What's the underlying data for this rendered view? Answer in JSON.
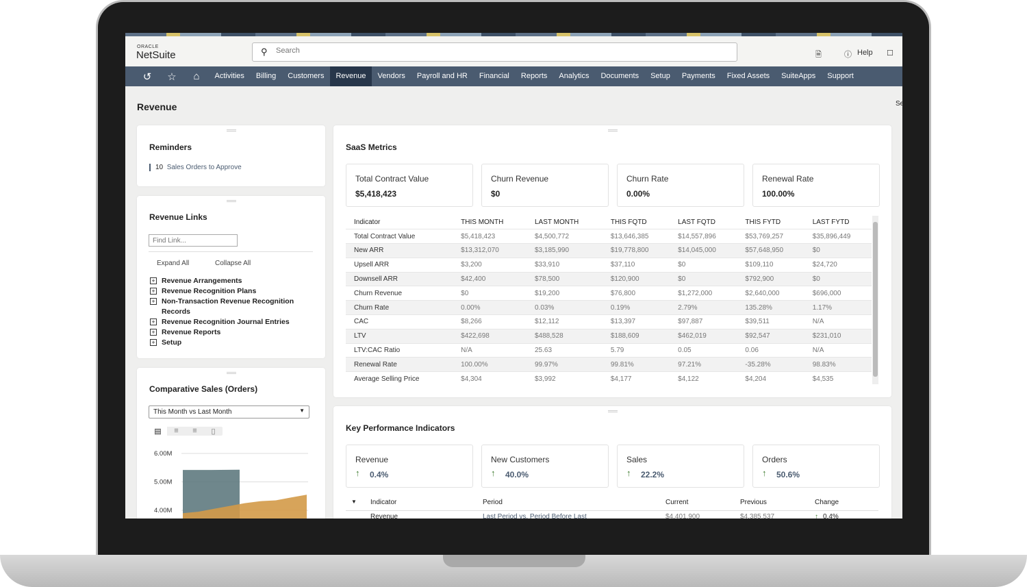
{
  "header": {
    "logo_small": "ORACLE",
    "logo": "NetSuite",
    "search_placeholder": "Search",
    "help": "Help"
  },
  "nav": {
    "items": [
      "Activities",
      "Billing",
      "Customers",
      "Revenue",
      "Vendors",
      "Payroll and HR",
      "Financial",
      "Reports",
      "Analytics",
      "Documents",
      "Setup",
      "Payments",
      "Fixed Assets",
      "SuiteApps",
      "Support"
    ],
    "active": "Revenue"
  },
  "page": {
    "title": "Revenue",
    "right_cut": "Se"
  },
  "reminders": {
    "title": "Reminders",
    "count": "10",
    "label": "Sales Orders to Approve"
  },
  "links": {
    "title": "Revenue Links",
    "find_placeholder": "Find Link...",
    "expand": "Expand All",
    "collapse": "Collapse All",
    "items": [
      "Revenue Arrangements",
      "Revenue Recognition Plans",
      "Non-Transaction Revenue Recognition Records",
      "Revenue Recognition Journal Entries",
      "Revenue Reports",
      "Setup"
    ]
  },
  "comparative": {
    "title": "Comparative Sales (Orders)",
    "select": "This Month vs Last Month",
    "chart_data": {
      "type": "area",
      "yticks": [
        "6.00M",
        "5.00M",
        "4.00M"
      ],
      "ylim": [
        3.9,
        6.2
      ],
      "series": [
        {
          "values": [
            5.42,
            5.42,
            5.43
          ],
          "color": "#5f7a80"
        },
        {
          "values": [
            3.9,
            3.95,
            4.05,
            4.15,
            4.25,
            4.32,
            4.35,
            4.45,
            4.55
          ],
          "color": "#d39a48"
        }
      ]
    }
  },
  "saas": {
    "title": "SaaS Metrics",
    "tiles": [
      {
        "label": "Total Contract Value",
        "value": "$5,418,423"
      },
      {
        "label": "Churn Revenue",
        "value": "$0"
      },
      {
        "label": "Churn Rate",
        "value": "0.00%"
      },
      {
        "label": "Renewal Rate",
        "value": "100.00%"
      }
    ],
    "columns": [
      "Indicator",
      "THIS MONTH",
      "LAST MONTH",
      "THIS FQTD",
      "LAST FQTD",
      "THIS FYTD",
      "LAST FYTD"
    ],
    "rows": [
      [
        "Total Contract Value",
        "$5,418,423",
        "$4,500,772",
        "$13,646,385",
        "$14,557,896",
        "$53,769,257",
        "$35,896,449"
      ],
      [
        "New ARR",
        "$13,312,070",
        "$3,185,990",
        "$19,778,800",
        "$14,045,000",
        "$57,648,950",
        "$0"
      ],
      [
        "Upsell ARR",
        "$3,200",
        "$33,910",
        "$37,110",
        "$0",
        "$109,110",
        "$24,720"
      ],
      [
        "Downsell ARR",
        "$42,400",
        "$78,500",
        "$120,900",
        "$0",
        "$792,900",
        "$0"
      ],
      [
        "Churn Revenue",
        "$0",
        "$19,200",
        "$76,800",
        "$1,272,000",
        "$2,640,000",
        "$696,000"
      ],
      [
        "Churn Rate",
        "0.00%",
        "0.03%",
        "0.19%",
        "2.79%",
        "135.28%",
        "1.17%"
      ],
      [
        "CAC",
        "$8,266",
        "$12,112",
        "$13,397",
        "$97,887",
        "$39,511",
        "N/A"
      ],
      [
        "LTV",
        "$422,698",
        "$488,528",
        "$188,609",
        "$462,019",
        "$92,547",
        "$231,010"
      ],
      [
        "LTV:CAC Ratio",
        "N/A",
        "25.63",
        "5.79",
        "0.05",
        "0.06",
        "N/A"
      ],
      [
        "Renewal Rate",
        "100.00%",
        "99.97%",
        "99.81%",
        "97.21%",
        "-35.28%",
        "98.83%"
      ],
      [
        "Average Selling Price",
        "$4,304",
        "$3,992",
        "$4,177",
        "$4,122",
        "$4,204",
        "$4,535"
      ]
    ]
  },
  "kpi": {
    "title": "Key Performance Indicators",
    "tiles": [
      {
        "label": "Revenue",
        "value": "0.4%"
      },
      {
        "label": "New Customers",
        "value": "40.0%"
      },
      {
        "label": "Sales",
        "value": "22.2%"
      },
      {
        "label": "Orders",
        "value": "50.6%"
      }
    ],
    "columns": [
      "Indicator",
      "Period",
      "Current",
      "Previous",
      "Change"
    ],
    "row": [
      "Revenue",
      "Last Period vs. Period Before Last",
      "$4,401,900",
      "$4,385,537",
      "0.4%"
    ],
    "trend_color": "#3c7a2c"
  }
}
